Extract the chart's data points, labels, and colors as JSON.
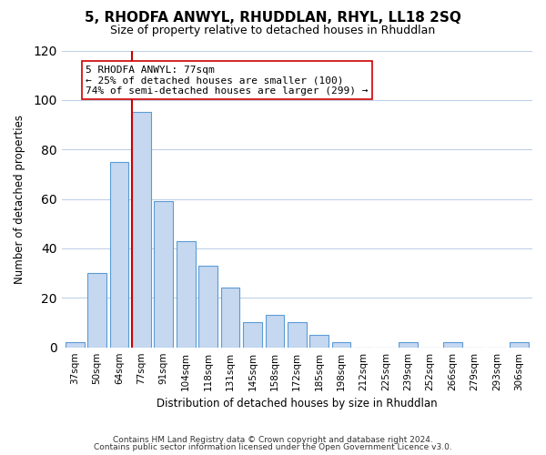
{
  "title": "5, RHODFA ANWYL, RHUDDLAN, RHYL, LL18 2SQ",
  "subtitle": "Size of property relative to detached houses in Rhuddlan",
  "xlabel": "Distribution of detached houses by size in Rhuddlan",
  "ylabel": "Number of detached properties",
  "footer_line1": "Contains HM Land Registry data © Crown copyright and database right 2024.",
  "footer_line2": "Contains public sector information licensed under the Open Government Licence v3.0.",
  "bar_labels": [
    "37sqm",
    "50sqm",
    "64sqm",
    "77sqm",
    "91sqm",
    "104sqm",
    "118sqm",
    "131sqm",
    "145sqm",
    "158sqm",
    "172sqm",
    "185sqm",
    "198sqm",
    "212sqm",
    "225sqm",
    "239sqm",
    "252sqm",
    "266sqm",
    "279sqm",
    "293sqm",
    "306sqm"
  ],
  "bar_values": [
    2,
    30,
    75,
    95,
    59,
    43,
    33,
    24,
    10,
    13,
    10,
    5,
    2,
    0,
    0,
    2,
    0,
    2,
    0,
    0,
    2
  ],
  "bar_color": "#c5d8f0",
  "bar_edge_color": "#5b9bd5",
  "highlight_bar_index": 3,
  "highlight_line_color": "#cc0000",
  "annotation_title": "5 RHODFA ANWYL: 77sqm",
  "annotation_line1": "← 25% of detached houses are smaller (100)",
  "annotation_line2": "74% of semi-detached houses are larger (299) →",
  "annotation_box_color": "#ffffff",
  "annotation_box_edge_color": "#cc0000",
  "ylim": [
    0,
    120
  ],
  "yticks": [
    0,
    20,
    40,
    60,
    80,
    100,
    120
  ],
  "background_color": "#ffffff",
  "grid_color": "#c0d0e8"
}
